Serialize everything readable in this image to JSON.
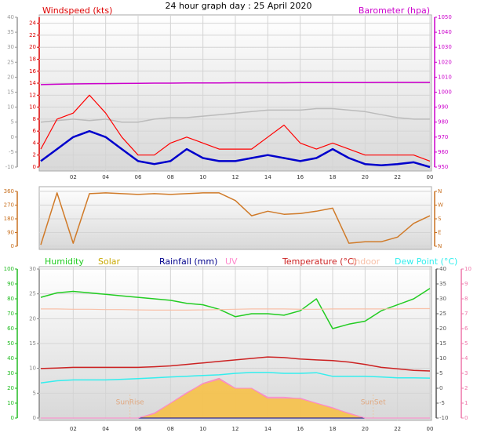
{
  "chart_data": [
    {
      "type": "line",
      "title": "24 hour graph day : 25 April 2020",
      "x": [
        0,
        1,
        2,
        3,
        4,
        5,
        6,
        7,
        8,
        9,
        10,
        11,
        12,
        13,
        14,
        15,
        16,
        17,
        18,
        19,
        20,
        21,
        22,
        23,
        24
      ],
      "xlim": [
        0,
        24
      ],
      "xticks": [
        {
          "value": 2,
          "label": "02"
        },
        {
          "value": 4,
          "label": "04"
        },
        {
          "value": 6,
          "label": "06"
        },
        {
          "value": 8,
          "label": "08"
        },
        10,
        12,
        14,
        16,
        18,
        20,
        22,
        {
          "value": 24,
          "label": "00"
        }
      ],
      "axes": [
        {
          "side": "left",
          "color": "#999999",
          "lim": [
            -10,
            40
          ],
          "ticks": [
            -10,
            -5,
            0,
            5,
            10,
            15,
            20,
            25,
            30,
            35,
            40
          ]
        },
        {
          "side": "left",
          "name": "Windspeed (kts)",
          "color": "#dd0000",
          "lim": [
            0,
            25
          ],
          "ticks": [
            0,
            2,
            4,
            6,
            8,
            10,
            12,
            14,
            16,
            18,
            20,
            22,
            24
          ],
          "grid": true
        },
        {
          "side": "right",
          "name": "Barometer (hpa)",
          "color": "#cc00cc",
          "lim": [
            950,
            1050
          ],
          "ticks": [
            950,
            960,
            970,
            980,
            990,
            1000,
            1010,
            1020,
            1030,
            1040,
            1050
          ]
        }
      ],
      "series": [
        {
          "color": "#bbbbbb",
          "axis": 0,
          "width": 1.5,
          "values": [
            5,
            5.5,
            6,
            5.5,
            6,
            5,
            5,
            6,
            6.5,
            6.5,
            7,
            7.5,
            8,
            8.5,
            9,
            9,
            9,
            9.5,
            9.5,
            9,
            8.5,
            7.5,
            6.5,
            6,
            6
          ]
        },
        {
          "color": "#cc00cc",
          "axis": 2,
          "width": 1.5,
          "values": [
            1005,
            1005.3,
            1005.5,
            1005.6,
            1005.7,
            1005.8,
            1005.9,
            1006,
            1006,
            1006.1,
            1006.2,
            1006.2,
            1006.3,
            1006.3,
            1006.3,
            1006.3,
            1006.4,
            1006.4,
            1006.4,
            1006.4,
            1006.4,
            1006.5,
            1006.5,
            1006.5,
            1006.5
          ]
        },
        {
          "color": "#ff0000",
          "axis": 1,
          "width": 1.2,
          "values": [
            3,
            8,
            9,
            12,
            9,
            5,
            2,
            2,
            4,
            5,
            4,
            3,
            3,
            3,
            5,
            7,
            4,
            3,
            4,
            3,
            2,
            2,
            2,
            2,
            1
          ]
        },
        {
          "color": "#0000cc",
          "axis": 1,
          "width": 2.5,
          "values": [
            1,
            3,
            5,
            6,
            5,
            3,
            1,
            0.5,
            1,
            3,
            1.5,
            1,
            1,
            1.5,
            2,
            1.5,
            1,
            1.5,
            3,
            1.5,
            0.5,
            0.3,
            0.5,
            0.8,
            0
          ]
        }
      ]
    },
    {
      "type": "line",
      "x": [
        0,
        1,
        2,
        3,
        4,
        5,
        6,
        7,
        8,
        9,
        10,
        11,
        12,
        13,
        14,
        15,
        16,
        17,
        18,
        19,
        20,
        21,
        22,
        23,
        24
      ],
      "xlim": [
        0,
        24
      ],
      "axes": [
        {
          "side": "left",
          "color": "#c87020",
          "lim": [
            0,
            360
          ],
          "ticks": [
            0,
            90,
            180,
            270,
            360
          ],
          "grid": true
        },
        {
          "side": "right",
          "color": "#c87020",
          "lim": [
            0,
            360
          ],
          "ticks": [
            {
              "value": 0,
              "label": "N"
            },
            {
              "value": 90,
              "label": "E"
            },
            {
              "value": 180,
              "label": "S"
            },
            {
              "value": 270,
              "label": "W"
            },
            {
              "value": 360,
              "label": "N"
            }
          ]
        }
      ],
      "series": [
        {
          "color": "#d07a28",
          "axis": 0,
          "width": 1.5,
          "values": [
            10,
            350,
            20,
            345,
            350,
            345,
            340,
            345,
            340,
            345,
            350,
            350,
            300,
            200,
            230,
            210,
            215,
            230,
            250,
            20,
            30,
            30,
            60,
            150,
            200
          ]
        }
      ]
    },
    {
      "type": "line",
      "x": [
        0,
        1,
        2,
        3,
        4,
        5,
        6,
        7,
        8,
        9,
        10,
        11,
        12,
        13,
        14,
        15,
        16,
        17,
        18,
        19,
        20,
        21,
        22,
        23,
        24
      ],
      "xlim": [
        0,
        24
      ],
      "xticks": [
        {
          "value": 2,
          "label": "02"
        },
        {
          "value": 4,
          "label": "04"
        },
        {
          "value": 6,
          "label": "06"
        },
        {
          "value": 8,
          "label": "08"
        },
        10,
        12,
        14,
        16,
        18,
        20,
        22,
        {
          "value": 24,
          "label": "00"
        }
      ],
      "axes": [
        {
          "side": "left",
          "color": "#22bb22",
          "lim": [
            0,
            100
          ],
          "ticks": [
            0,
            10,
            20,
            30,
            40,
            50,
            60,
            70,
            80,
            90,
            100
          ]
        },
        {
          "side": "left",
          "color": "#888888",
          "lim": [
            0,
            30
          ],
          "ticks": [
            0,
            5,
            10,
            15,
            20,
            25,
            30
          ],
          "grid": true
        },
        {
          "side": "right",
          "color": "#555555",
          "lim": [
            -10,
            40
          ],
          "ticks": [
            -10,
            -5,
            0,
            5,
            10,
            15,
            20,
            25,
            30,
            35,
            40
          ]
        },
        {
          "side": "right",
          "color": "#ee77aa",
          "lim": [
            0,
            10
          ],
          "ticks": [
            0,
            1,
            2,
            3,
            4,
            5,
            6,
            7,
            8,
            9,
            10
          ]
        }
      ],
      "series": [
        {
          "name": "Humidity",
          "color": "#22cc22",
          "axis": 0,
          "width": 1.5,
          "values": [
            81,
            84,
            85,
            84,
            83,
            82,
            81,
            80,
            79,
            77,
            76,
            73,
            68,
            70,
            70,
            69,
            72,
            80,
            60,
            63,
            65,
            72,
            76,
            80,
            87
          ]
        },
        {
          "name": "Solar",
          "color": "#f8c040",
          "axis": 1,
          "fill": true,
          "width": 1,
          "values": [
            0,
            0,
            0,
            0,
            0,
            0,
            0,
            1,
            3,
            5,
            7,
            8,
            6,
            6,
            4,
            4,
            4,
            3,
            2,
            1,
            0,
            0,
            0,
            0,
            0
          ]
        },
        {
          "name": "Rainfall (mm)",
          "color": "#00008b",
          "axis": 1,
          "width": 1,
          "values": [
            0,
            0,
            0,
            0,
            0,
            0,
            0,
            0,
            0,
            0,
            0,
            0,
            0,
            0,
            0,
            0,
            0,
            0,
            0,
            0,
            0,
            0,
            0,
            0,
            0
          ]
        },
        {
          "name": "UV",
          "color": "#ff88cc",
          "axis": 3,
          "width": 1,
          "values": [
            0,
            0,
            0,
            0,
            0,
            0,
            0,
            0.3,
            1,
            1.7,
            2.3,
            2.6,
            2,
            2,
            1.4,
            1.4,
            1.3,
            1,
            0.7,
            0.3,
            0,
            0,
            0,
            0,
            0
          ]
        },
        {
          "name": "Temperature (°C)",
          "color": "#cc2222",
          "axis": 2,
          "width": 1.5,
          "values": [
            6.6,
            6.8,
            7,
            7,
            7,
            7,
            7,
            7.2,
            7.5,
            8,
            8.5,
            9,
            9.5,
            10,
            10.5,
            10.3,
            9.8,
            9.5,
            9.3,
            8.8,
            8,
            7,
            6.5,
            6,
            5.8
          ]
        },
        {
          "name": "Indoor",
          "color": "#f8c0a8",
          "axis": 2,
          "width": 1.2,
          "values": [
            26.6,
            26.6,
            26.5,
            26.5,
            26.4,
            26.4,
            26.3,
            26.2,
            26.2,
            26.2,
            26.3,
            26.4,
            26.5,
            26.6,
            26.6,
            26.6,
            26.5,
            26.5,
            26.6,
            26.6,
            26.6,
            26.6,
            26.6,
            26.7,
            26.7
          ]
        },
        {
          "name": "Dew Point (°C)",
          "color": "#33eeee",
          "axis": 2,
          "width": 1.5,
          "values": [
            1.8,
            2.5,
            2.8,
            2.8,
            2.8,
            3,
            3.2,
            3.5,
            3.8,
            4,
            4.3,
            4.5,
            5,
            5.3,
            5.3,
            5,
            5,
            5.2,
            4,
            4,
            4,
            3.8,
            3.5,
            3.5,
            3.4
          ]
        }
      ],
      "annotations": [
        {
          "text": "SunRise",
          "x": 5.5
        },
        {
          "text": "SunSet",
          "x": 20.5
        }
      ]
    }
  ]
}
